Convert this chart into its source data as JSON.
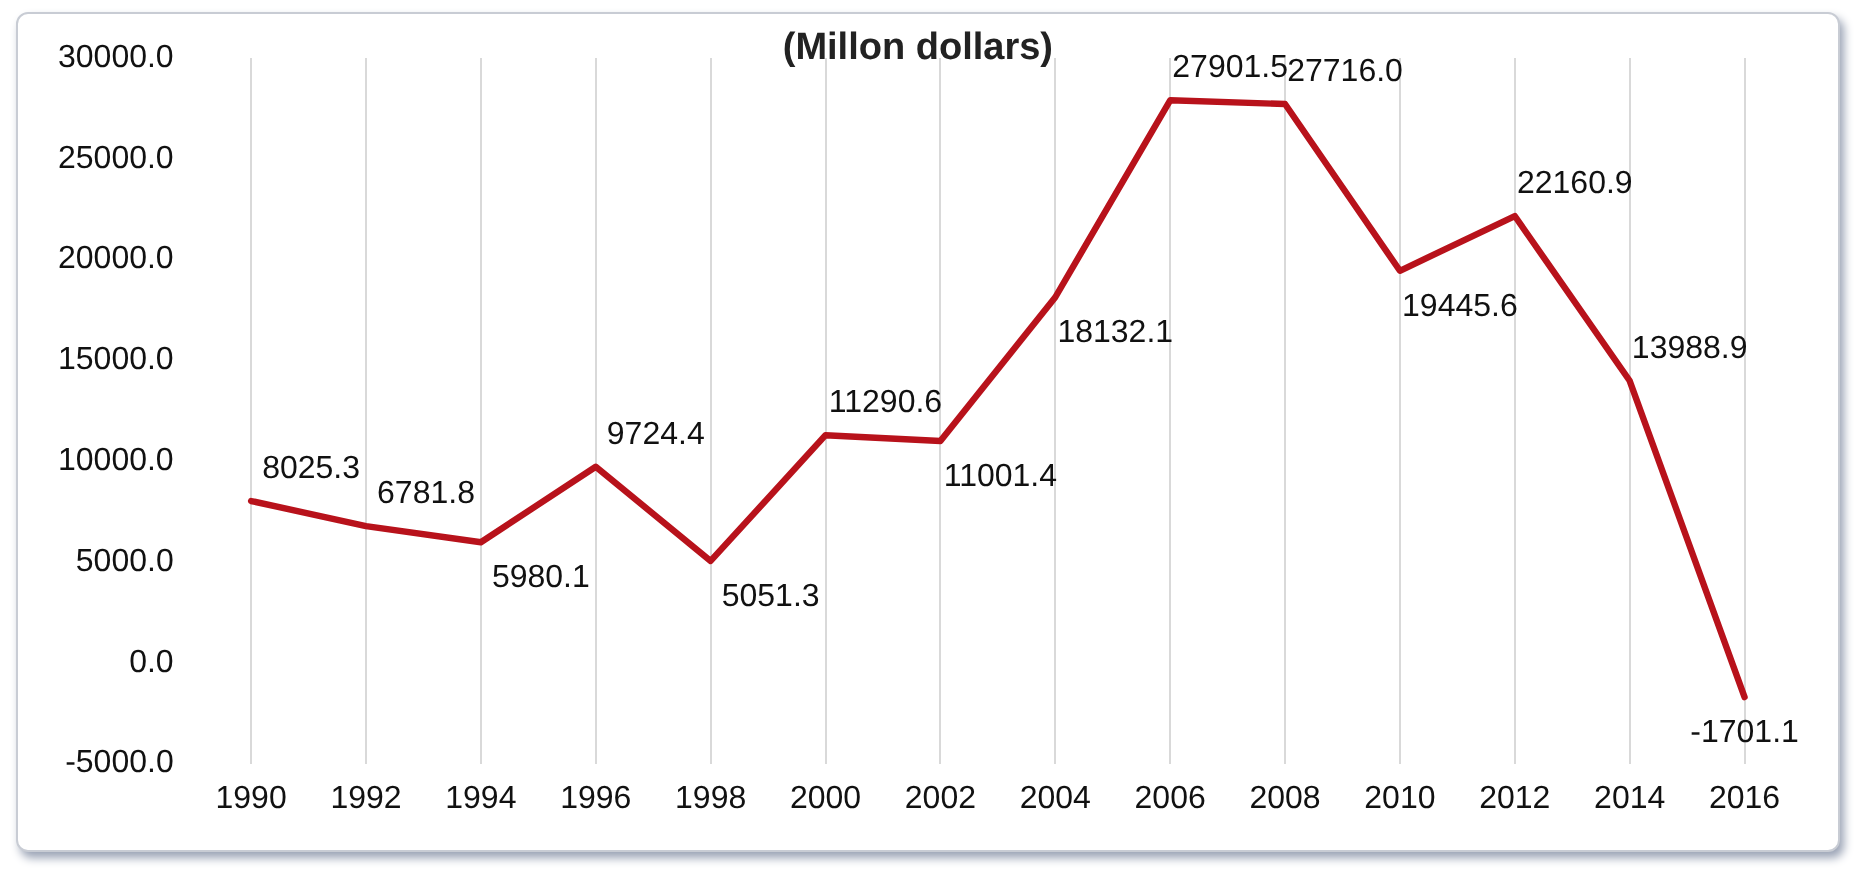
{
  "chart_data": {
    "type": "line",
    "title": "(Millon dollars)",
    "categories": [
      "1990",
      "1992",
      "1994",
      "1996",
      "1998",
      "2000",
      "2002",
      "2004",
      "2006",
      "2008",
      "2010",
      "2012",
      "2014",
      "2016"
    ],
    "series": [
      {
        "color": "#b8121b",
        "values": [
          8025.3,
          6781.8,
          5980.1,
          9724.4,
          5051.3,
          11290.6,
          11001.4,
          18132.1,
          27901.5,
          27716.0,
          19445.6,
          22160.9,
          13988.9,
          -1701.1
        ],
        "value_labels": [
          "8025.3",
          "6781.8",
          "5980.1",
          "9724.4",
          "5051.3",
          "11290.6",
          "11001.4",
          "18132.1",
          "27901.5",
          "27716.0",
          "19445.6",
          "22160.9",
          "13988.9",
          "-1701.1"
        ]
      }
    ],
    "ylim": [
      -5000,
      30000
    ],
    "yticks": [
      {
        "value": -5000,
        "label": "-5000.0"
      },
      {
        "value": 0,
        "label": "0.0"
      },
      {
        "value": 5000,
        "label": "5000.0"
      },
      {
        "value": 10000,
        "label": "10000.0"
      },
      {
        "value": 15000,
        "label": "15000.0"
      },
      {
        "value": 20000,
        "label": "20000.0"
      },
      {
        "value": 25000,
        "label": "25000.0"
      },
      {
        "value": 30000,
        "label": "30000.0"
      }
    ],
    "grid": "x",
    "legend": false,
    "marker": "none",
    "line_style": "solid"
  }
}
